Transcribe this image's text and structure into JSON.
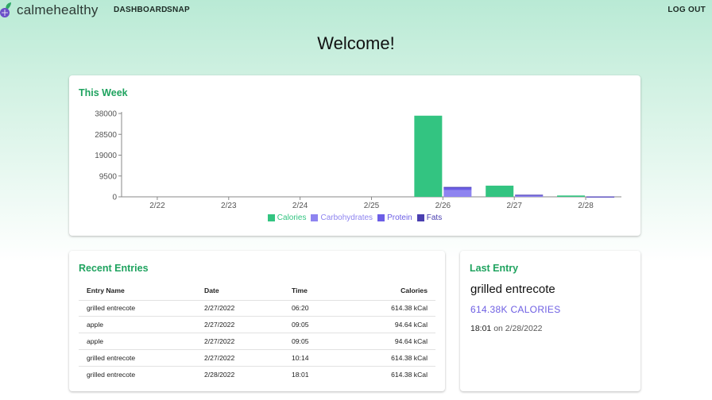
{
  "nav": {
    "brand": "calmehealthy",
    "dashboard": "DASHBOARD",
    "snap": "SNAP",
    "logout": "LOG OUT"
  },
  "welcome": "Welcome!",
  "week": {
    "title": "This Week"
  },
  "chart_data": {
    "type": "bar",
    "title": "",
    "xlabel": "",
    "ylabel": "",
    "categories": [
      "2/22",
      "2/23",
      "2/24",
      "2/25",
      "2/26",
      "2/27",
      "2/28"
    ],
    "y_ticks": [
      0,
      9500,
      19000,
      28500,
      38000
    ],
    "ylim": [
      0,
      38000
    ],
    "grid": false,
    "legend_position": "bottom",
    "series": [
      {
        "name": "Calories",
        "color": "#33c481",
        "values": [
          0,
          0,
          0,
          0,
          37000,
          5100,
          600
        ]
      },
      {
        "name": "Carbohydrates",
        "color": "#8e84f0",
        "values": [
          0,
          0,
          0,
          0,
          3000,
          700,
          80
        ]
      },
      {
        "name": "Protein",
        "color": "#6c5ee6",
        "values": [
          0,
          0,
          0,
          0,
          1200,
          200,
          20
        ]
      },
      {
        "name": "Fats",
        "color": "#4a3fb0",
        "values": [
          0,
          0,
          0,
          0,
          300,
          50,
          5
        ]
      }
    ]
  },
  "recent": {
    "title": "Recent Entries",
    "columns": {
      "name": "Entry Name",
      "date": "Date",
      "time": "Time",
      "calories": "Calories"
    },
    "rows": [
      {
        "name": "grilled entrecote",
        "date": "2/27/2022",
        "time": "06:20",
        "calories": "614.38 kCal"
      },
      {
        "name": "apple",
        "date": "2/27/2022",
        "time": "09:05",
        "calories": "94.64 kCal"
      },
      {
        "name": "apple",
        "date": "2/27/2022",
        "time": "09:05",
        "calories": "94.64 kCal"
      },
      {
        "name": "grilled entrecote",
        "date": "2/27/2022",
        "time": "10:14",
        "calories": "614.38 kCal"
      },
      {
        "name": "grilled entrecote",
        "date": "2/28/2022",
        "time": "18:01",
        "calories": "614.38 kCal"
      }
    ]
  },
  "last": {
    "title": "Last Entry",
    "name": "grilled entrecote",
    "calories": "614.38K CALORIES",
    "time": "18:01",
    "date_text": "on 2/28/2022"
  },
  "colors": {
    "accent_green": "#1fa35f",
    "accent_purple": "#6e5fe3"
  }
}
